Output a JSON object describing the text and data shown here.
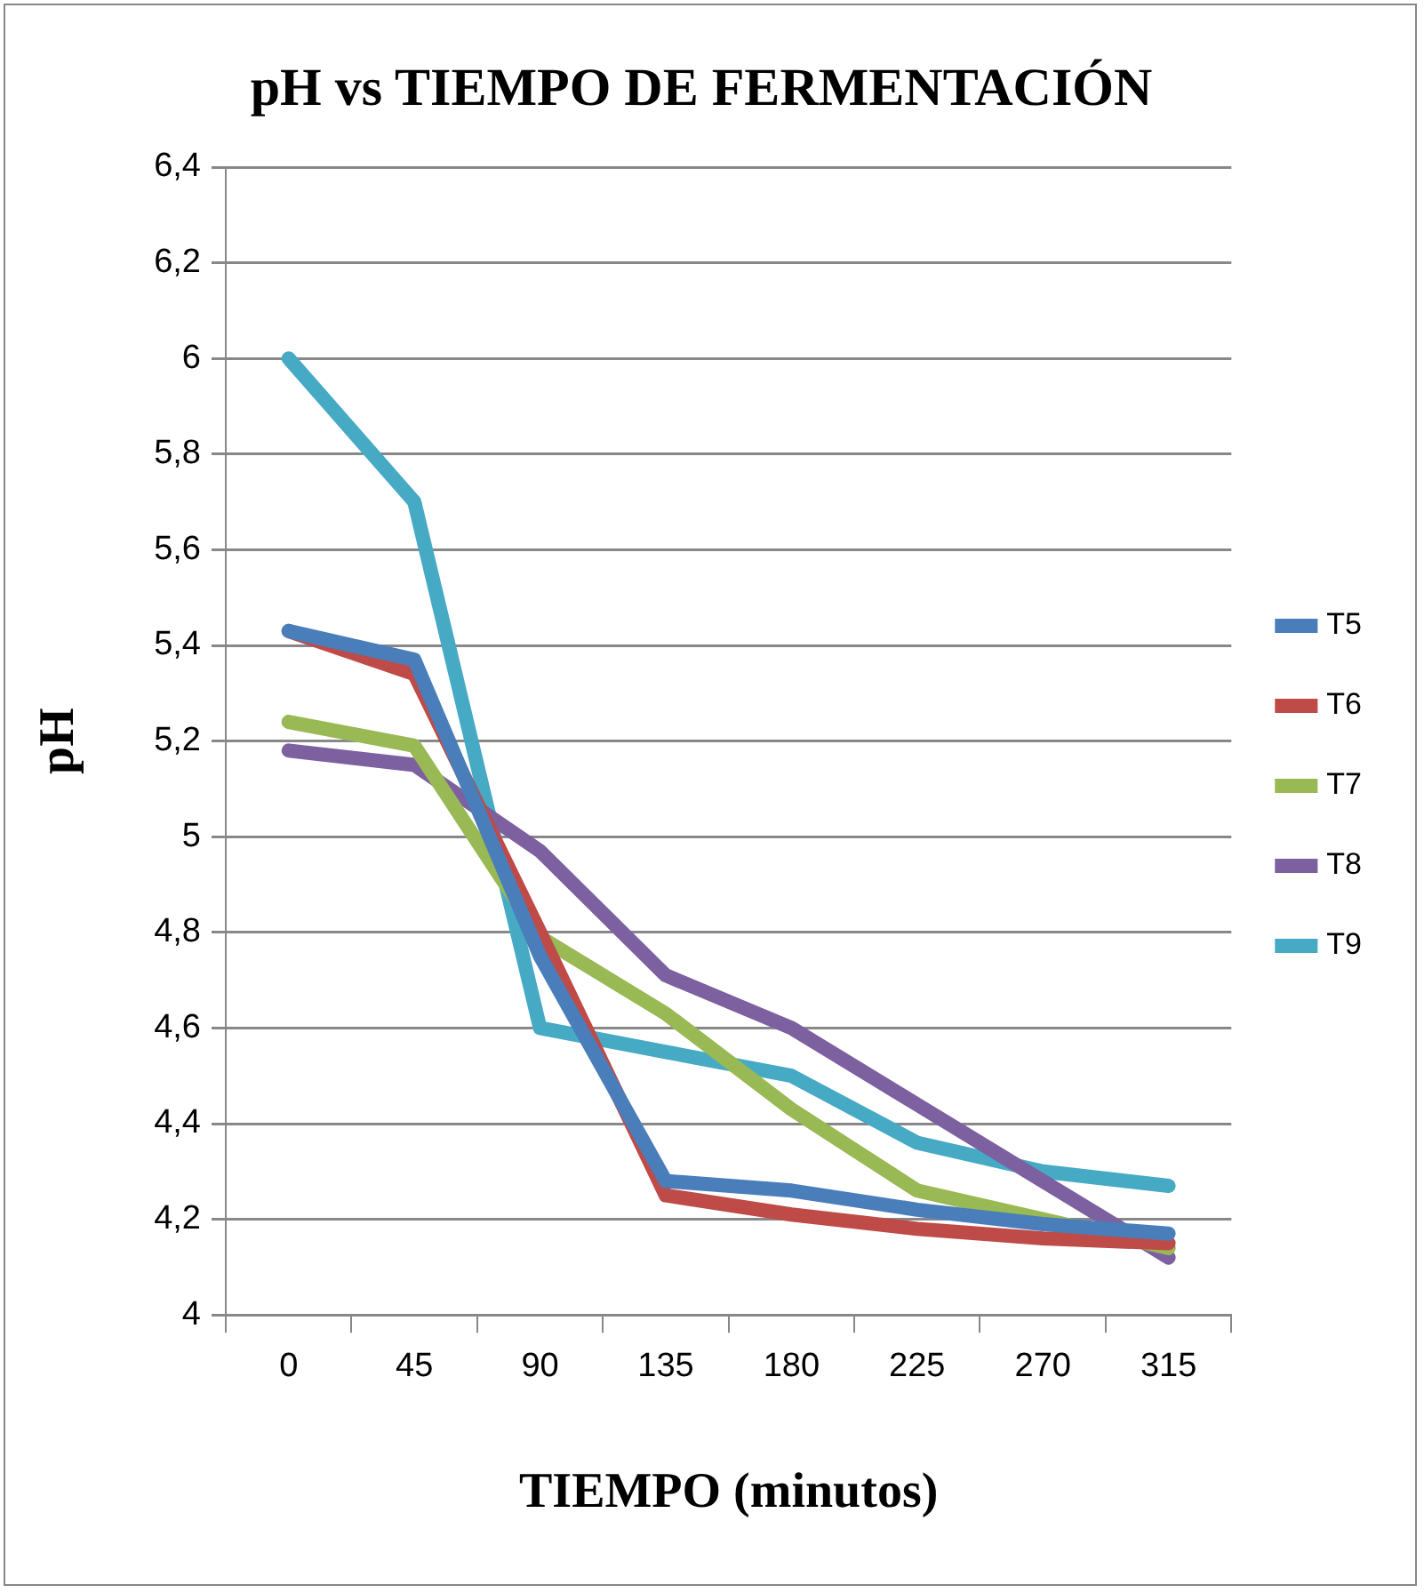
{
  "chart_data": {
    "type": "line",
    "title": "pH vs TIEMPO DE FERMENTACIÓN",
    "xlabel": "TIEMPO (minutos)",
    "ylabel": "pH",
    "categories": [
      "0",
      "45",
      "90",
      "135",
      "180",
      "225",
      "270",
      "315"
    ],
    "series": [
      {
        "name": "T5",
        "color": "#4a7ebb",
        "values": [
          5.43,
          5.37,
          4.75,
          4.28,
          4.26,
          4.22,
          4.19,
          4.17
        ]
      },
      {
        "name": "T6",
        "color": "#be4b48",
        "values": [
          5.43,
          5.34,
          4.8,
          4.25,
          4.21,
          4.18,
          4.16,
          4.15
        ]
      },
      {
        "name": "T7",
        "color": "#98b954",
        "values": [
          5.24,
          5.19,
          4.79,
          4.63,
          4.43,
          4.26,
          4.2,
          4.14
        ]
      },
      {
        "name": "T8",
        "color": "#7d60a0",
        "values": [
          5.18,
          5.15,
          4.97,
          4.71,
          4.6,
          4.44,
          4.28,
          4.12
        ]
      },
      {
        "name": "T9",
        "color": "#46aac5",
        "values": [
          6.0,
          5.7,
          4.6,
          4.55,
          4.5,
          4.36,
          4.3,
          4.27
        ]
      }
    ],
    "ylim": [
      4,
      6.4
    ],
    "yticks": [
      4,
      {
        "value": 4.2,
        "label": "4,2"
      },
      {
        "value": 4.4,
        "label": "4,4"
      },
      {
        "value": 4.6,
        "label": "4,6"
      },
      {
        "value": 4.8,
        "label": "4,8"
      },
      5,
      {
        "value": 5.2,
        "label": "5,2"
      },
      {
        "value": 5.4,
        "label": "5,4"
      },
      {
        "value": 5.6,
        "label": "5,6"
      },
      {
        "value": 5.8,
        "label": "5,8"
      },
      6,
      {
        "value": 6.2,
        "label": "6,2"
      },
      {
        "value": 6.4,
        "label": "6,4"
      }
    ],
    "grid": "y",
    "legend": "right",
    "marker": "none",
    "line_style": "solid"
  }
}
